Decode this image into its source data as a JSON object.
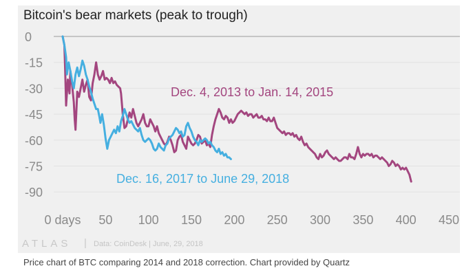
{
  "caption": "Price chart of BTC comparing 2014 and 2018 correction. Chart provided by Quartz",
  "footer": {
    "logo": "ATLAS",
    "source": "Data: CoinDesk | June, 29, 2018"
  },
  "chart_data": {
    "type": "line",
    "title": "Bitcoin's bear markets (peak to trough)",
    "xlabel": "",
    "ylabel": "",
    "xlim": [
      0,
      450
    ],
    "ylim": [
      -90,
      0
    ],
    "x_ticks": [
      {
        "value": 0,
        "label": "0 days"
      },
      {
        "value": 50,
        "label": "50"
      },
      {
        "value": 100,
        "label": "100"
      },
      {
        "value": 150,
        "label": "150"
      },
      {
        "value": 200,
        "label": "200"
      },
      {
        "value": 250,
        "label": "250"
      },
      {
        "value": 300,
        "label": "300"
      },
      {
        "value": 350,
        "label": "350"
      },
      {
        "value": 400,
        "label": "400"
      },
      {
        "value": 450,
        "label": "450"
      }
    ],
    "y_ticks": [
      {
        "value": 0,
        "label": "0"
      },
      {
        "value": -15,
        "label": "-15"
      },
      {
        "value": -30,
        "label": "-30"
      },
      {
        "value": -45,
        "label": "-45"
      },
      {
        "value": -60,
        "label": "-60"
      },
      {
        "value": -75,
        "label": "-75"
      },
      {
        "value": -90,
        "label": "-90"
      }
    ],
    "grid": true,
    "legend": "direct labels on chart",
    "series": [
      {
        "name": "Dec. 4, 2013 to Jan. 14, 2015",
        "color": "#a3467f",
        "points": [
          [
            0,
            0
          ],
          [
            2,
            -5
          ],
          [
            3,
            -20
          ],
          [
            4,
            -40
          ],
          [
            6,
            -25
          ],
          [
            8,
            -33
          ],
          [
            9,
            -20
          ],
          [
            11,
            -28
          ],
          [
            13,
            -38
          ],
          [
            14,
            -48
          ],
          [
            15,
            -54
          ],
          [
            17,
            -32
          ],
          [
            19,
            -35
          ],
          [
            21,
            -30
          ],
          [
            23,
            -25
          ],
          [
            25,
            -32
          ],
          [
            27,
            -28
          ],
          [
            29,
            -25
          ],
          [
            31,
            -35
          ],
          [
            33,
            -37
          ],
          [
            35,
            -27
          ],
          [
            37,
            -22
          ],
          [
            39,
            -15
          ],
          [
            41,
            -22
          ],
          [
            43,
            -25
          ],
          [
            45,
            -23
          ],
          [
            47,
            -20
          ],
          [
            49,
            -25
          ],
          [
            51,
            -24
          ],
          [
            53,
            -25
          ],
          [
            55,
            -27
          ],
          [
            57,
            -24
          ],
          [
            59,
            -27
          ],
          [
            61,
            -26
          ],
          [
            63,
            -28
          ],
          [
            65,
            -29
          ],
          [
            67,
            -30
          ],
          [
            68,
            -33
          ],
          [
            70,
            -45
          ],
          [
            72,
            -53
          ],
          [
            74,
            -52
          ],
          [
            76,
            -48
          ],
          [
            78,
            -44
          ],
          [
            80,
            -47
          ],
          [
            82,
            -42
          ],
          [
            84,
            -46
          ],
          [
            86,
            -50
          ],
          [
            88,
            -52
          ],
          [
            90,
            -50
          ],
          [
            92,
            -48
          ],
          [
            94,
            -45
          ],
          [
            96,
            -50
          ],
          [
            98,
            -52
          ],
          [
            100,
            -52
          ],
          [
            102,
            -48
          ],
          [
            104,
            -50
          ],
          [
            106,
            -52
          ],
          [
            108,
            -55
          ],
          [
            110,
            -52
          ],
          [
            112,
            -56
          ],
          [
            114,
            -58
          ],
          [
            116,
            -60
          ],
          [
            118,
            -62
          ],
          [
            120,
            -63
          ],
          [
            122,
            -61
          ],
          [
            124,
            -58
          ],
          [
            126,
            -60
          ],
          [
            128,
            -63
          ],
          [
            130,
            -67
          ],
          [
            132,
            -66
          ],
          [
            134,
            -60
          ],
          [
            136,
            -58
          ],
          [
            138,
            -57
          ],
          [
            140,
            -61
          ],
          [
            142,
            -63
          ],
          [
            144,
            -65
          ],
          [
            146,
            -58
          ],
          [
            148,
            -60
          ],
          [
            150,
            -62
          ],
          [
            152,
            -63
          ],
          [
            154,
            -62
          ],
          [
            156,
            -60
          ],
          [
            158,
            -57
          ],
          [
            160,
            -58
          ],
          [
            162,
            -62
          ],
          [
            164,
            -61
          ],
          [
            166,
            -60
          ],
          [
            168,
            -63
          ],
          [
            170,
            -62
          ],
          [
            172,
            -64
          ],
          [
            174,
            -57
          ],
          [
            176,
            -52
          ],
          [
            178,
            -48
          ],
          [
            180,
            -45
          ],
          [
            182,
            -42
          ],
          [
            184,
            -44
          ],
          [
            186,
            -47
          ],
          [
            188,
            -48
          ],
          [
            190,
            -46
          ],
          [
            192,
            -47
          ],
          [
            194,
            -50
          ],
          [
            196,
            -48
          ],
          [
            198,
            -50
          ],
          [
            200,
            -49
          ],
          [
            202,
            -47
          ],
          [
            204,
            -45
          ],
          [
            206,
            -44
          ],
          [
            208,
            -43
          ],
          [
            210,
            -44
          ],
          [
            212,
            -45
          ],
          [
            214,
            -44
          ],
          [
            216,
            -46
          ],
          [
            218,
            -45
          ],
          [
            220,
            -45
          ],
          [
            222,
            -47
          ],
          [
            224,
            -46
          ],
          [
            226,
            -45
          ],
          [
            228,
            -47
          ],
          [
            230,
            -47
          ],
          [
            232,
            -46
          ],
          [
            234,
            -48
          ],
          [
            236,
            -48
          ],
          [
            238,
            -49
          ],
          [
            240,
            -47
          ],
          [
            242,
            -49
          ],
          [
            244,
            -49
          ],
          [
            246,
            -47
          ],
          [
            248,
            -50
          ],
          [
            250,
            -53
          ],
          [
            252,
            -54
          ],
          [
            254,
            -55
          ],
          [
            256,
            -56
          ],
          [
            258,
            -55
          ],
          [
            260,
            -57
          ],
          [
            262,
            -56
          ],
          [
            264,
            -56
          ],
          [
            266,
            -57
          ],
          [
            268,
            -56
          ],
          [
            270,
            -58
          ],
          [
            272,
            -57
          ],
          [
            274,
            -59
          ],
          [
            276,
            -60
          ],
          [
            278,
            -58
          ],
          [
            280,
            -61
          ],
          [
            282,
            -63
          ],
          [
            284,
            -62
          ],
          [
            286,
            -64
          ],
          [
            288,
            -65
          ],
          [
            290,
            -66
          ],
          [
            292,
            -67
          ],
          [
            294,
            -68
          ],
          [
            296,
            -70
          ],
          [
            298,
            -71
          ],
          [
            300,
            -68
          ],
          [
            302,
            -70
          ],
          [
            304,
            -69
          ],
          [
            306,
            -67
          ],
          [
            308,
            -66
          ],
          [
            310,
            -68
          ],
          [
            312,
            -69
          ],
          [
            314,
            -70
          ],
          [
            316,
            -71
          ],
          [
            318,
            -70
          ],
          [
            320,
            -71
          ],
          [
            322,
            -72
          ],
          [
            324,
            -72
          ],
          [
            326,
            -71
          ],
          [
            328,
            -70
          ],
          [
            330,
            -70
          ],
          [
            332,
            -71
          ],
          [
            334,
            -68
          ],
          [
            336,
            -70
          ],
          [
            338,
            -70
          ],
          [
            340,
            -71
          ],
          [
            342,
            -68
          ],
          [
            344,
            -64
          ],
          [
            346,
            -68
          ],
          [
            348,
            -70
          ],
          [
            350,
            -68
          ],
          [
            352,
            -69
          ],
          [
            354,
            -68
          ],
          [
            356,
            -68
          ],
          [
            358,
            -69
          ],
          [
            360,
            -68
          ],
          [
            362,
            -70
          ],
          [
            364,
            -69
          ],
          [
            366,
            -69
          ],
          [
            368,
            -70
          ],
          [
            370,
            -71
          ],
          [
            372,
            -70
          ],
          [
            374,
            -71
          ],
          [
            376,
            -72
          ],
          [
            378,
            -73
          ],
          [
            380,
            -75
          ],
          [
            382,
            -74
          ],
          [
            384,
            -72
          ],
          [
            386,
            -73
          ],
          [
            388,
            -75
          ],
          [
            390,
            -74
          ],
          [
            392,
            -75
          ],
          [
            394,
            -77
          ],
          [
            396,
            -76
          ],
          [
            398,
            -77
          ],
          [
            400,
            -76
          ],
          [
            402,
            -78
          ],
          [
            404,
            -80
          ],
          [
            406,
            -84
          ]
        ]
      },
      {
        "name": "Dec. 16, 2017 to June 29, 2018",
        "color": "#45afe0",
        "points": [
          [
            0,
            0
          ],
          [
            2,
            -5
          ],
          [
            4,
            -12
          ],
          [
            5,
            -22
          ],
          [
            7,
            -15
          ],
          [
            9,
            -20
          ],
          [
            11,
            -26
          ],
          [
            13,
            -30
          ],
          [
            15,
            -22
          ],
          [
            17,
            -18
          ],
          [
            19,
            -23
          ],
          [
            21,
            -19
          ],
          [
            23,
            -14
          ],
          [
            25,
            -17
          ],
          [
            27,
            -22
          ],
          [
            29,
            -25
          ],
          [
            31,
            -29
          ],
          [
            33,
            -32
          ],
          [
            35,
            -36
          ],
          [
            37,
            -39
          ],
          [
            39,
            -42
          ],
          [
            41,
            -42
          ],
          [
            43,
            -47
          ],
          [
            44,
            -50
          ],
          [
            46,
            -45
          ],
          [
            48,
            -51
          ],
          [
            50,
            -59
          ],
          [
            52,
            -65
          ],
          [
            54,
            -60
          ],
          [
            56,
            -58
          ],
          [
            58,
            -56
          ],
          [
            60,
            -54
          ],
          [
            62,
            -56
          ],
          [
            64,
            -52
          ],
          [
            66,
            -55
          ],
          [
            68,
            -49
          ],
          [
            70,
            -46
          ],
          [
            72,
            -42
          ],
          [
            74,
            -45
          ],
          [
            76,
            -48
          ],
          [
            78,
            -50
          ],
          [
            80,
            -49
          ],
          [
            82,
            -51
          ],
          [
            84,
            -53
          ],
          [
            86,
            -54
          ],
          [
            88,
            -55
          ],
          [
            90,
            -53
          ],
          [
            92,
            -57
          ],
          [
            94,
            -60
          ],
          [
            96,
            -61
          ],
          [
            98,
            -60
          ],
          [
            100,
            -59
          ],
          [
            102,
            -60
          ],
          [
            104,
            -62
          ],
          [
            106,
            -65
          ],
          [
            108,
            -66
          ],
          [
            110,
            -65
          ],
          [
            112,
            -62
          ],
          [
            114,
            -64
          ],
          [
            116,
            -65
          ],
          [
            118,
            -66
          ],
          [
            120,
            -63
          ],
          [
            122,
            -62
          ],
          [
            124,
            -59
          ],
          [
            126,
            -58
          ],
          [
            128,
            -57
          ],
          [
            130,
            -55
          ],
          [
            132,
            -53
          ],
          [
            134,
            -54
          ],
          [
            136,
            -56
          ],
          [
            138,
            -55
          ],
          [
            140,
            -58
          ],
          [
            142,
            -57
          ],
          [
            144,
            -52
          ],
          [
            146,
            -50
          ],
          [
            148,
            -53
          ],
          [
            150,
            -55
          ],
          [
            152,
            -58
          ],
          [
            154,
            -60
          ],
          [
            156,
            -61
          ],
          [
            158,
            -63
          ],
          [
            160,
            -60
          ],
          [
            162,
            -61
          ],
          [
            164,
            -60
          ],
          [
            166,
            -59
          ],
          [
            168,
            -60
          ],
          [
            170,
            -62
          ],
          [
            172,
            -61
          ],
          [
            174,
            -63
          ],
          [
            176,
            -64
          ],
          [
            178,
            -66
          ],
          [
            180,
            -67
          ],
          [
            182,
            -65
          ],
          [
            184,
            -68
          ],
          [
            186,
            -67
          ],
          [
            188,
            -69
          ],
          [
            190,
            -68
          ],
          [
            192,
            -70
          ],
          [
            194,
            -70
          ],
          [
            196,
            -71
          ]
        ]
      }
    ],
    "annotations": [
      {
        "text": "Dec. 4, 2013 to Jan. 14, 2015",
        "color": "#a3467f"
      },
      {
        "text": "Dec. 16, 2017 to June 29, 2018",
        "color": "#45afe0"
      }
    ]
  }
}
